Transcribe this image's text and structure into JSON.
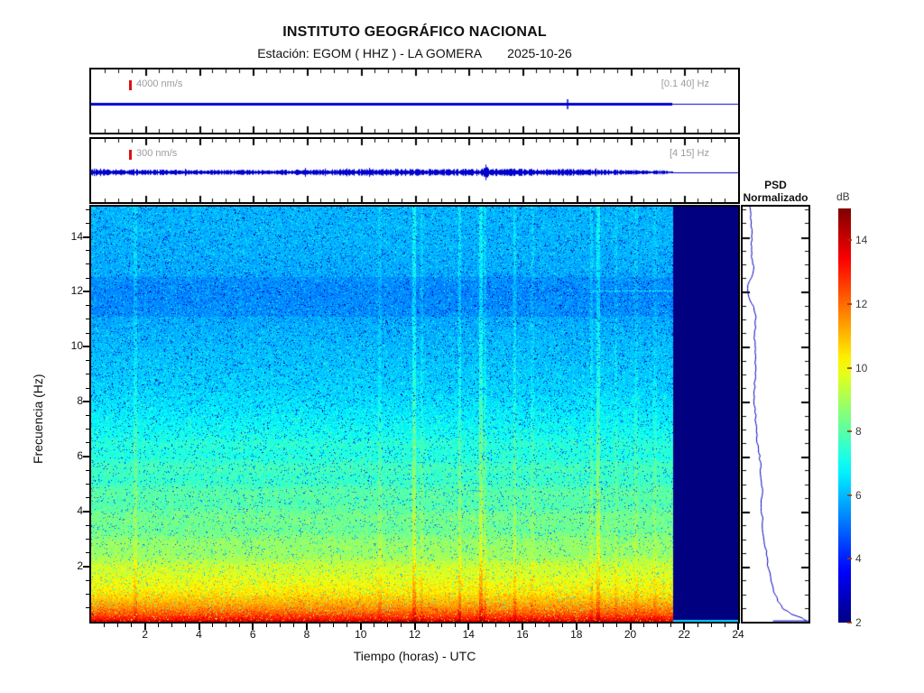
{
  "header": {
    "title": "INSTITUTO GEOGRÁFICO NACIONAL",
    "station_label": "Estación:  EGOM ( HHZ ) - LA GOMERA",
    "date": "2025-10-26"
  },
  "trace_panels": [
    {
      "scale_label": "4000 nm/s",
      "filter_label": "[0.1 40] Hz"
    },
    {
      "scale_label": "300 nm/s",
      "filter_label": "[4 15] Hz"
    }
  ],
  "spectrogram": {
    "xlabel": "Tiempo (horas) - UTC",
    "ylabel": "Frecuencia (Hz)",
    "x_tick_labels": [
      2,
      4,
      6,
      8,
      10,
      12,
      14,
      16,
      18,
      20,
      22,
      24
    ],
    "y_tick_labels": [
      2,
      4,
      6,
      8,
      10,
      12,
      14
    ],
    "x_range_hours": [
      0,
      24
    ],
    "y_range_hz": [
      0,
      15.1
    ],
    "no_data_color": "#000080",
    "trace_color": "#0000cc",
    "scalebar_color": "#dd1111"
  },
  "psd_panel": {
    "title_line1": "PSD",
    "title_line2": "Normalizado",
    "curve_color": "#0000bb"
  },
  "colorbar": {
    "label": "dB",
    "tick_labels": [
      14,
      12,
      10,
      8,
      6,
      4,
      2
    ]
  },
  "chart_data": {
    "type": "heatmap",
    "title": "INSTITUTO GEOGRÁFICO NACIONAL — Estación EGOM (HHZ) - LA GOMERA — 2025-10-26",
    "xlabel": "Tiempo (horas) - UTC",
    "ylabel": "Frecuencia (Hz)",
    "x_range": [
      0,
      24
    ],
    "y_range": [
      0,
      15.1
    ],
    "colormap": "jet",
    "colorbar_label": "dB",
    "colorbar_range": [
      2,
      15
    ],
    "colorbar_ticks": [
      2,
      4,
      6,
      8,
      10,
      12,
      14
    ],
    "data_coverage_hours": [
      0,
      21.56
    ],
    "no_data_after_hour": 21.56,
    "mean_db_by_frequency": [
      [
        0,
        13.7
      ],
      [
        0.1,
        13.2
      ],
      [
        0.25,
        12.5
      ],
      [
        0.45,
        11.75
      ],
      [
        0.7,
        11.1
      ],
      [
        1.1,
        10.3
      ],
      [
        1.6,
        9.8
      ],
      [
        2.2,
        9.15
      ],
      [
        3,
        8.5
      ],
      [
        4,
        8.1
      ],
      [
        5,
        7.7
      ],
      [
        6.5,
        7.2
      ],
      [
        7.5,
        6.7
      ],
      [
        8.5,
        6.3
      ],
      [
        10,
        6.0
      ],
      [
        11.2,
        5.75
      ],
      [
        12,
        5.65
      ],
      [
        12.8,
        5.8
      ],
      [
        14,
        5.9
      ],
      [
        15.1,
        5.9
      ]
    ],
    "hf_dark_band_hz": [
      11.1,
      12.55
    ],
    "line_12hz": {
      "freq": 12.05,
      "from_hour": 18.6,
      "to_hour": 21.56,
      "db_boost": 1.5
    },
    "vertical_streaks_hours": [
      [
        1.63,
        0.5
      ],
      [
        10.7,
        0.35
      ],
      [
        11.97,
        0.9
      ],
      [
        12.25,
        0.4
      ],
      [
        13.65,
        0.65
      ],
      [
        14.45,
        1.0
      ],
      [
        14.6,
        0.5
      ],
      [
        15.7,
        0.55
      ],
      [
        16.35,
        0.3
      ],
      [
        18.55,
        0.45
      ],
      [
        18.8,
        0.85
      ],
      [
        19.45,
        0.35
      ],
      [
        20.2,
        0.3
      ],
      [
        20.9,
        0.3
      ]
    ],
    "trace1": {
      "scale": "4000 nm/s",
      "band": "[0.1 40] Hz",
      "event_hour": 17.65,
      "ends_hour": 21.56
    },
    "trace2": {
      "scale": "300 nm/s",
      "band": "[4 15] Hz",
      "ends_hour": 21.56,
      "amplitude_profile": [
        [
          0,
          3.2
        ],
        [
          0.5,
          3.0
        ],
        [
          1,
          2.7
        ],
        [
          2,
          2.4
        ],
        [
          3,
          2.2
        ],
        [
          4,
          2.1
        ],
        [
          5,
          2.0
        ],
        [
          6,
          2.1
        ],
        [
          7,
          2.2
        ],
        [
          8,
          2.3
        ],
        [
          9,
          2.5
        ],
        [
          10,
          2.6
        ],
        [
          11,
          2.9
        ],
        [
          11.8,
          3.1
        ],
        [
          12.3,
          2.7
        ],
        [
          13,
          2.5
        ],
        [
          13.8,
          2.9
        ],
        [
          14.3,
          3.1
        ],
        [
          14.9,
          3.3
        ],
        [
          15.5,
          2.9
        ],
        [
          16,
          3.1
        ],
        [
          16.5,
          2.8
        ],
        [
          17,
          2.6
        ],
        [
          17.5,
          2.9
        ],
        [
          18,
          2.8
        ],
        [
          18.5,
          2.6
        ],
        [
          19,
          2.4
        ],
        [
          19.5,
          2.2
        ],
        [
          20,
          2.0
        ],
        [
          20.5,
          1.8
        ],
        [
          21,
          1.6
        ],
        [
          21.56,
          1.4
        ]
      ],
      "bursts": [
        [
          12.1,
          4.2
        ],
        [
          14.63,
          8.5
        ]
      ]
    },
    "psd_curve": [
      [
        0.11,
        0
      ],
      [
        0.14,
        0.055
      ],
      [
        0.13,
        0.105
      ],
      [
        0.17,
        0.153
      ],
      [
        0.07,
        0.197
      ],
      [
        0.1,
        0.218
      ],
      [
        0.2,
        0.258
      ],
      [
        0.18,
        0.317
      ],
      [
        0.2,
        0.393
      ],
      [
        0.17,
        0.459
      ],
      [
        0.2,
        0.513
      ],
      [
        0.225,
        0.568
      ],
      [
        0.27,
        0.616
      ],
      [
        0.27,
        0.655
      ],
      [
        0.3,
        0.688
      ],
      [
        0.28,
        0.725
      ],
      [
        0.31,
        0.758
      ],
      [
        0.3,
        0.786
      ],
      [
        0.34,
        0.814
      ],
      [
        0.37,
        0.845
      ],
      [
        0.39,
        0.873
      ],
      [
        0.44,
        0.902
      ],
      [
        0.48,
        0.928
      ],
      [
        0.535,
        0.95
      ],
      [
        0.62,
        0.969
      ],
      [
        0.75,
        0.982
      ],
      [
        0.9,
        0.991
      ],
      [
        0.97,
        0.998
      ]
    ],
    "psd_bottom_line": [
      [
        0.46,
        0.998
      ],
      [
        1.0,
        0.998
      ]
    ]
  }
}
